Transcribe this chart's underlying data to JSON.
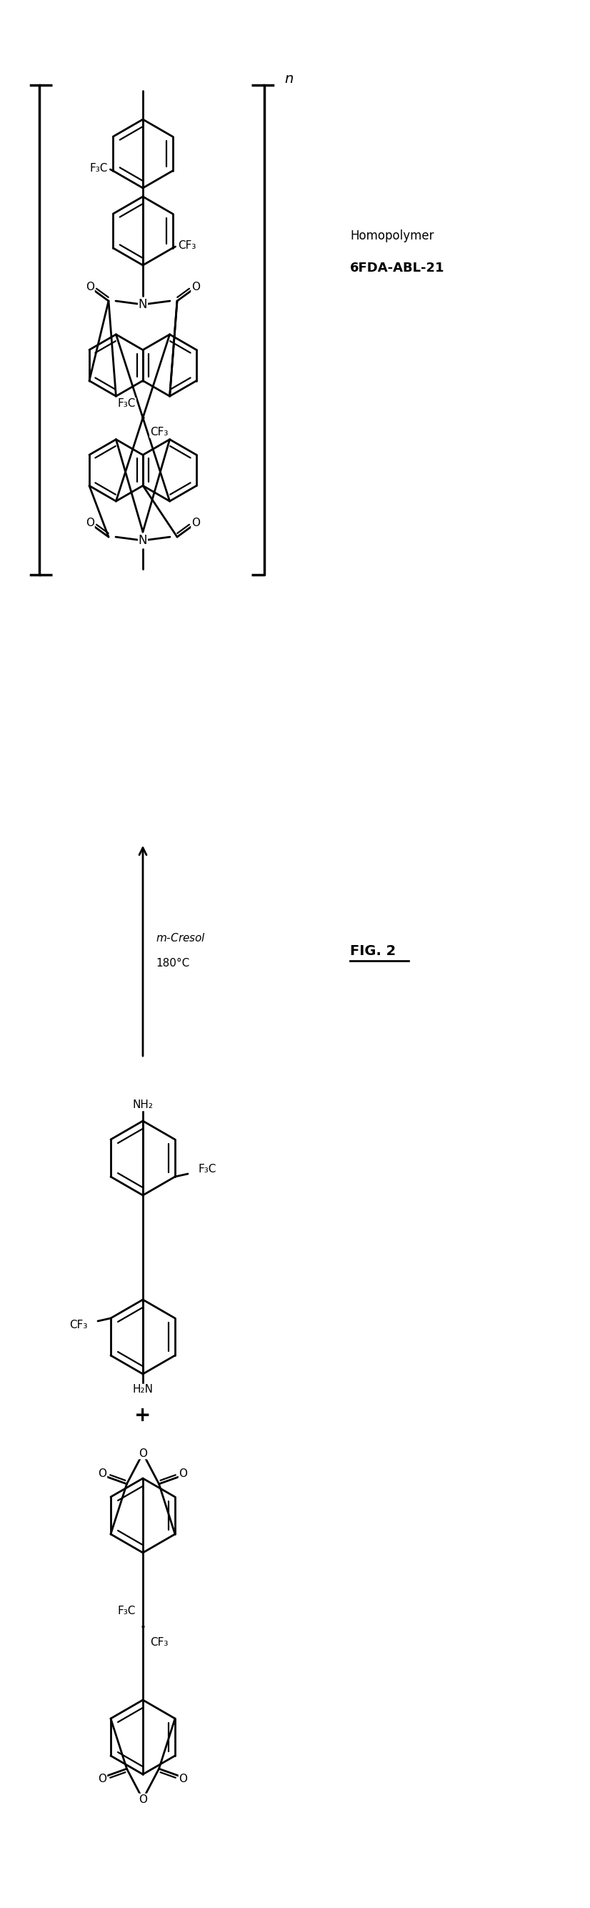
{
  "title": "FIG. 2",
  "label_homopolymer": "Homopolymer",
  "label_name": "6FDA-ABL-21",
  "reaction_condition_1": "m-Cresol",
  "reaction_condition_2": "180°C",
  "bg_color": "#ffffff",
  "line_color": "#000000",
  "fig_width": 8.26,
  "fig_height": 26.69
}
